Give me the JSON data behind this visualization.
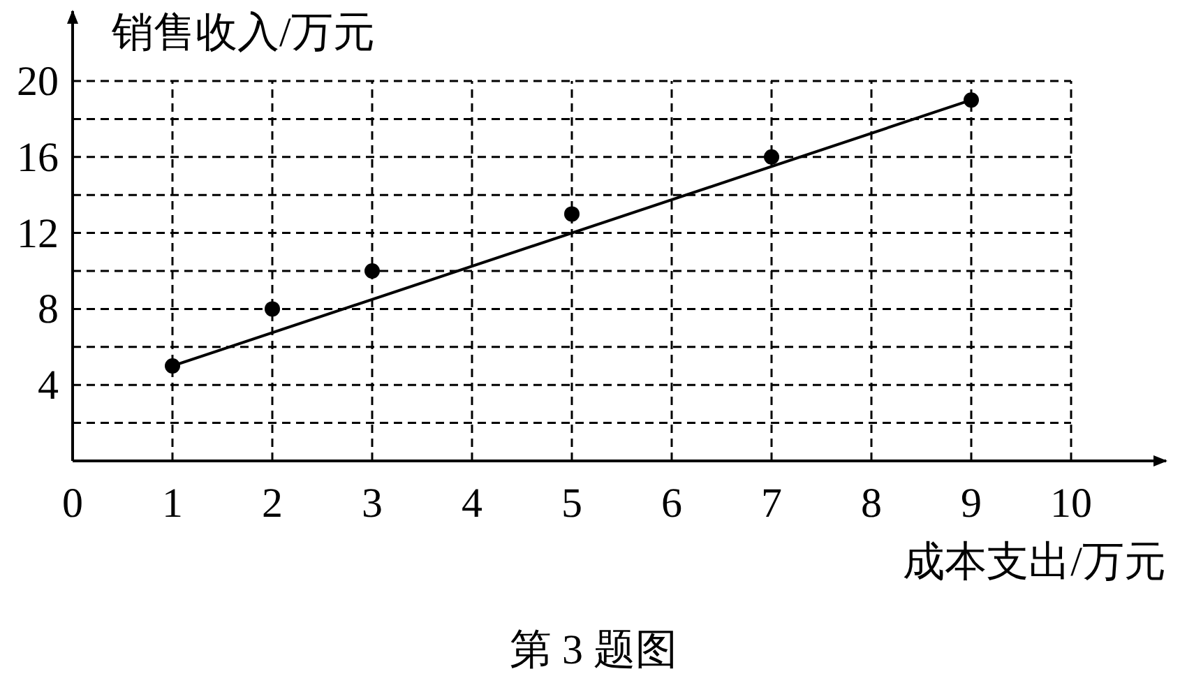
{
  "chart_data": {
    "type": "scatter",
    "xlabel": "成本支出/万元",
    "ylabel": "销售收入/万元",
    "annotations": [
      "第 3 题图"
    ],
    "xlim": [
      0,
      10
    ],
    "ylim": [
      0,
      20
    ],
    "xticks": [
      0,
      1,
      2,
      3,
      4,
      5,
      6,
      7,
      8,
      9,
      10
    ],
    "yticks": [
      {
        "value": 2,
        "label": null
      },
      4,
      {
        "value": 6,
        "label": null
      },
      8,
      {
        "value": 10,
        "label": null
      },
      12,
      {
        "value": 14,
        "label": null
      },
      16,
      {
        "value": 18,
        "label": null
      },
      20
    ],
    "grid": true,
    "series": [
      {
        "color": "#000000",
        "x": [
          1,
          2,
          3,
          5,
          7,
          9
        ],
        "values": [
          5,
          8,
          10,
          13,
          16,
          19
        ],
        "marker": "circle"
      },
      {
        "type": "line",
        "color": "#000000",
        "x": [
          1,
          9
        ],
        "values": [
          5,
          19
        ],
        "marker": "none",
        "line_style": "solid"
      }
    ]
  }
}
